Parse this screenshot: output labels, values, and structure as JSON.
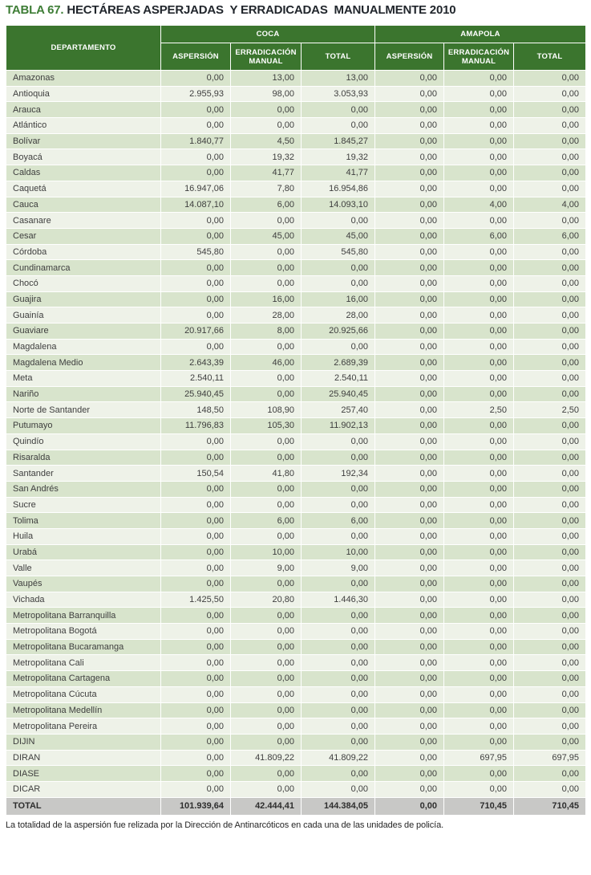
{
  "title": {
    "prefix": "TABLA 67.",
    "rest": " HECTÁREAS ASPERJADAS  Y ERRADICADAS  MANUALMENTE 2010"
  },
  "colors": {
    "header_green": "#3B752E",
    "title_green": "#3E7D36",
    "stripe_dark": "#D8E4CC",
    "stripe_light": "#EEF2E8",
    "total_gray": "#C8C8C6"
  },
  "table": {
    "dept_header": "DEPARTAMENTO",
    "groups": [
      {
        "label": "COCA"
      },
      {
        "label": "AMAPOLA"
      }
    ],
    "sub_headers": [
      "ASPERSIÓN",
      "ERRADICACIÓN MANUAL",
      "TOTAL",
      "ASPERSIÓN",
      "ERRADICACIÓN MANUAL",
      "TOTAL"
    ],
    "rows": [
      {
        "dept": "Amazonas",
        "values": [
          "0,00",
          "13,00",
          "13,00",
          "0,00",
          "0,00",
          "0,00"
        ]
      },
      {
        "dept": "Antioquia",
        "values": [
          "2.955,93",
          "98,00",
          "3.053,93",
          "0,00",
          "0,00",
          "0,00"
        ]
      },
      {
        "dept": "Arauca",
        "values": [
          "0,00",
          "0,00",
          "0,00",
          "0,00",
          "0,00",
          "0,00"
        ]
      },
      {
        "dept": "Atlántico",
        "values": [
          "0,00",
          "0,00",
          "0,00",
          "0,00",
          "0,00",
          "0,00"
        ]
      },
      {
        "dept": "Bolívar",
        "values": [
          "1.840,77",
          "4,50",
          "1.845,27",
          "0,00",
          "0,00",
          "0,00"
        ]
      },
      {
        "dept": "Boyacá",
        "values": [
          "0,00",
          "19,32",
          "19,32",
          "0,00",
          "0,00",
          "0,00"
        ]
      },
      {
        "dept": "Caldas",
        "values": [
          "0,00",
          "41,77",
          "41,77",
          "0,00",
          "0,00",
          "0,00"
        ]
      },
      {
        "dept": "Caquetá",
        "values": [
          "16.947,06",
          "7,80",
          "16.954,86",
          "0,00",
          "0,00",
          "0,00"
        ]
      },
      {
        "dept": "Cauca",
        "values": [
          "14.087,10",
          "6,00",
          "14.093,10",
          "0,00",
          "4,00",
          "4,00"
        ]
      },
      {
        "dept": "Casanare",
        "values": [
          "0,00",
          "0,00",
          "0,00",
          "0,00",
          "0,00",
          "0,00"
        ]
      },
      {
        "dept": "Cesar",
        "values": [
          "0,00",
          "45,00",
          "45,00",
          "0,00",
          "6,00",
          "6,00"
        ]
      },
      {
        "dept": "Córdoba",
        "values": [
          "545,80",
          "0,00",
          "545,80",
          "0,00",
          "0,00",
          "0,00"
        ]
      },
      {
        "dept": "Cundinamarca",
        "values": [
          "0,00",
          "0,00",
          "0,00",
          "0,00",
          "0,00",
          "0,00"
        ]
      },
      {
        "dept": "Chocó",
        "values": [
          "0,00",
          "0,00",
          "0,00",
          "0,00",
          "0,00",
          "0,00"
        ]
      },
      {
        "dept": "Guajira",
        "values": [
          "0,00",
          "16,00",
          "16,00",
          "0,00",
          "0,00",
          "0,00"
        ]
      },
      {
        "dept": "Guainía",
        "values": [
          "0,00",
          "28,00",
          "28,00",
          "0,00",
          "0,00",
          "0,00"
        ]
      },
      {
        "dept": "Guaviare",
        "values": [
          "20.917,66",
          "8,00",
          "20.925,66",
          "0,00",
          "0,00",
          "0,00"
        ]
      },
      {
        "dept": "Magdalena",
        "values": [
          "0,00",
          "0,00",
          "0,00",
          "0,00",
          "0,00",
          "0,00"
        ]
      },
      {
        "dept": "Magdalena Medio",
        "values": [
          "2.643,39",
          "46,00",
          "2.689,39",
          "0,00",
          "0,00",
          "0,00"
        ]
      },
      {
        "dept": "Meta",
        "values": [
          "2.540,11",
          "0,00",
          "2.540,11",
          "0,00",
          "0,00",
          "0,00"
        ]
      },
      {
        "dept": "Nariño",
        "values": [
          "25.940,45",
          "0,00",
          "25.940,45",
          "0,00",
          "0,00",
          "0,00"
        ]
      },
      {
        "dept": "Norte de Santander",
        "values": [
          "148,50",
          "108,90",
          "257,40",
          "0,00",
          "2,50",
          "2,50"
        ]
      },
      {
        "dept": "Putumayo",
        "values": [
          "11.796,83",
          "105,30",
          "11.902,13",
          "0,00",
          "0,00",
          "0,00"
        ]
      },
      {
        "dept": "Quindío",
        "values": [
          "0,00",
          "0,00",
          "0,00",
          "0,00",
          "0,00",
          "0,00"
        ]
      },
      {
        "dept": "Risaralda",
        "values": [
          "0,00",
          "0,00",
          "0,00",
          "0,00",
          "0,00",
          "0,00"
        ]
      },
      {
        "dept": "Santander",
        "values": [
          "150,54",
          "41,80",
          "192,34",
          "0,00",
          "0,00",
          "0,00"
        ]
      },
      {
        "dept": "San Andrés",
        "values": [
          "0,00",
          "0,00",
          "0,00",
          "0,00",
          "0,00",
          "0,00"
        ]
      },
      {
        "dept": "Sucre",
        "values": [
          "0,00",
          "0,00",
          "0,00",
          "0,00",
          "0,00",
          "0,00"
        ]
      },
      {
        "dept": "Tolima",
        "values": [
          "0,00",
          "6,00",
          "6,00",
          "0,00",
          "0,00",
          "0,00"
        ]
      },
      {
        "dept": "Huila",
        "values": [
          "0,00",
          "0,00",
          "0,00",
          "0,00",
          "0,00",
          "0,00"
        ]
      },
      {
        "dept": "Urabá",
        "values": [
          "0,00",
          "10,00",
          "10,00",
          "0,00",
          "0,00",
          "0,00"
        ]
      },
      {
        "dept": "Valle",
        "values": [
          "0,00",
          "9,00",
          "9,00",
          "0,00",
          "0,00",
          "0,00"
        ]
      },
      {
        "dept": "Vaupés",
        "values": [
          "0,00",
          "0,00",
          "0,00",
          "0,00",
          "0,00",
          "0,00"
        ]
      },
      {
        "dept": "Vichada",
        "values": [
          "1.425,50",
          "20,80",
          "1.446,30",
          "0,00",
          "0,00",
          "0,00"
        ]
      },
      {
        "dept": "Metropolitana Barranquilla",
        "values": [
          "0,00",
          "0,00",
          "0,00",
          "0,00",
          "0,00",
          "0,00"
        ]
      },
      {
        "dept": "Metropolitana Bogotá",
        "values": [
          "0,00",
          "0,00",
          "0,00",
          "0,00",
          "0,00",
          "0,00"
        ]
      },
      {
        "dept": "Metropolitana Bucaramanga",
        "values": [
          "0,00",
          "0,00",
          "0,00",
          "0,00",
          "0,00",
          "0,00"
        ]
      },
      {
        "dept": "Metropolitana Cali",
        "values": [
          "0,00",
          "0,00",
          "0,00",
          "0,00",
          "0,00",
          "0,00"
        ]
      },
      {
        "dept": "Metropolitana Cartagena",
        "values": [
          "0,00",
          "0,00",
          "0,00",
          "0,00",
          "0,00",
          "0,00"
        ]
      },
      {
        "dept": "Metropolitana Cúcuta",
        "values": [
          "0,00",
          "0,00",
          "0,00",
          "0,00",
          "0,00",
          "0,00"
        ]
      },
      {
        "dept": "Metropolitana Medellín",
        "values": [
          "0,00",
          "0,00",
          "0,00",
          "0,00",
          "0,00",
          "0,00"
        ]
      },
      {
        "dept": "Metropolitana Pereira",
        "values": [
          "0,00",
          "0,00",
          "0,00",
          "0,00",
          "0,00",
          "0,00"
        ]
      },
      {
        "dept": "DIJIN",
        "values": [
          "0,00",
          "0,00",
          "0,00",
          "0,00",
          "0,00",
          "0,00"
        ]
      },
      {
        "dept": "DIRAN",
        "values": [
          "0,00",
          "41.809,22",
          "41.809,22",
          "0,00",
          "697,95",
          "697,95"
        ]
      },
      {
        "dept": "DIASE",
        "values": [
          "0,00",
          "0,00",
          "0,00",
          "0,00",
          "0,00",
          "0,00"
        ]
      },
      {
        "dept": "DICAR",
        "values": [
          "0,00",
          "0,00",
          "0,00",
          "0,00",
          "0,00",
          "0,00"
        ]
      }
    ],
    "total_row": {
      "dept": "TOTAL",
      "values": [
        "101.939,64",
        "42.444,41",
        "144.384,05",
        "0,00",
        "710,45",
        "710,45"
      ]
    }
  },
  "footnote": "La totalidad de la aspersión fue relizada por la Dirección de Antinarcóticos en cada una de las unidades de policía."
}
